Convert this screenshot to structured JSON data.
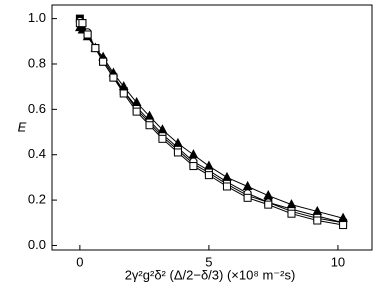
{
  "chart_data": {
    "type": "line",
    "y_label": "E",
    "x_label": "2γ²g²δ² (Δ/2−δ/3)  (×10⁸ m⁻²s)",
    "x": [
      0,
      0.1,
      0.3,
      0.6,
      0.9,
      1.3,
      1.7,
      2.2,
      2.7,
      3.2,
      3.8,
      4.4,
      5.0,
      5.7,
      6.5,
      7.3,
      8.2,
      9.2,
      10.2
    ],
    "series": [
      {
        "marker": "square-filled",
        "color": "#000000",
        "values": [
          1.0,
          0.98,
          0.93,
          0.87,
          0.81,
          0.74,
          0.68,
          0.6,
          0.54,
          0.48,
          0.42,
          0.36,
          0.32,
          0.27,
          0.22,
          0.19,
          0.15,
          0.12,
          0.1
        ]
      },
      {
        "marker": "circle-open",
        "color": "#000000",
        "values": [
          0.99,
          0.98,
          0.94,
          0.87,
          0.82,
          0.75,
          0.68,
          0.61,
          0.55,
          0.49,
          0.43,
          0.37,
          0.33,
          0.28,
          0.23,
          0.19,
          0.16,
          0.13,
          0.1
        ]
      },
      {
        "marker": "triangle-filled",
        "color": "#000000",
        "values": [
          0.96,
          0.95,
          0.92,
          0.87,
          0.83,
          0.76,
          0.7,
          0.63,
          0.57,
          0.51,
          0.45,
          0.4,
          0.35,
          0.3,
          0.26,
          0.22,
          0.18,
          0.15,
          0.12
        ]
      },
      {
        "marker": "square-open",
        "color": "#000000",
        "values": [
          0.98,
          0.98,
          0.93,
          0.87,
          0.81,
          0.74,
          0.67,
          0.59,
          0.53,
          0.47,
          0.41,
          0.35,
          0.31,
          0.26,
          0.21,
          0.18,
          0.14,
          0.11,
          0.09
        ]
      }
    ],
    "xlim": [
      -1.08,
      11.32
    ],
    "ylim": [
      -0.02,
      1.06
    ],
    "xticks": [
      0,
      5,
      10
    ],
    "yticks": [
      {
        "value": 0,
        "label": "0.0"
      },
      {
        "value": 0.2,
        "label": "0.2"
      },
      {
        "value": 0.4,
        "label": "0.4"
      },
      {
        "value": 0.6,
        "label": "0.6"
      },
      {
        "value": 0.8,
        "label": "0.8"
      },
      {
        "value": 1,
        "label": "1.0"
      }
    ]
  }
}
